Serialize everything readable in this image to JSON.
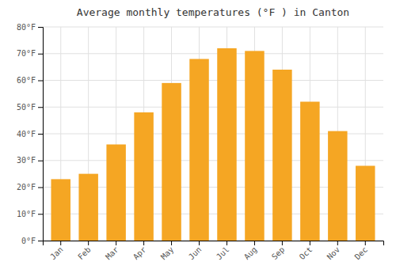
{
  "chart_data": {
    "type": "bar",
    "title": "Average monthly temperatures (°F ) in Canton",
    "categories": [
      "Jan",
      "Feb",
      "Mar",
      "Apr",
      "May",
      "Jun",
      "Jul",
      "Aug",
      "Sep",
      "Oct",
      "Nov",
      "Dec"
    ],
    "values": [
      23,
      25,
      36,
      48,
      59,
      68,
      72,
      71,
      64,
      52,
      41,
      28
    ],
    "color": "#F5A623",
    "ylim": [
      0,
      80
    ],
    "yticks": [
      {
        "value": 0,
        "label": "0°F"
      },
      {
        "value": 10,
        "label": "10°F"
      },
      {
        "value": 20,
        "label": "20°F"
      },
      {
        "value": 30,
        "label": "30°F"
      },
      {
        "value": 40,
        "label": "40°F"
      },
      {
        "value": 50,
        "label": "50°F"
      },
      {
        "value": 60,
        "label": "60°F"
      },
      {
        "value": 70,
        "label": "70°F"
      },
      {
        "value": 80,
        "label": "80°F"
      }
    ],
    "grid": true
  }
}
